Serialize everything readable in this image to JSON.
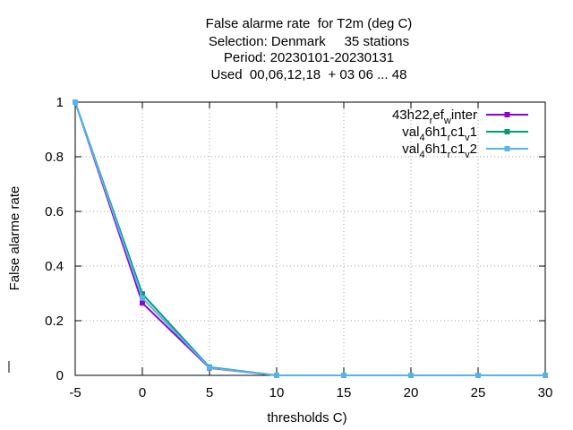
{
  "chart_data": {
    "type": "line",
    "title_lines": [
      "False alarme rate  for T2m (deg C)",
      "Selection: Denmark     35 stations",
      "Period: 20230101-20230131",
      "Used  00,06,12,18  + 03 06 ... 48"
    ],
    "xlabel": "thresholds C)",
    "ylabel": "False alarme rate",
    "xlim": [
      -5,
      30
    ],
    "ylim": [
      0,
      1
    ],
    "xticks": [
      "-5",
      "0",
      "5",
      "10",
      "15",
      "20",
      "25",
      "30"
    ],
    "yticks": [
      "0",
      "0.2",
      "0.4",
      "0.6",
      "0.8",
      "1"
    ],
    "grid": true,
    "legend_position": "top-right",
    "x": [
      -5,
      0,
      5,
      10,
      15,
      20,
      25,
      30
    ],
    "series": [
      {
        "name": "43h22_ref_winter",
        "legend": {
          "base": "43h22",
          "parts": [
            [
              "sub",
              "r"
            ],
            [
              "base",
              "ef"
            ],
            [
              "sub",
              "w"
            ],
            [
              "base",
              "inter"
            ]
          ]
        },
        "color": "#9400d3",
        "values": [
          1.0,
          0.265,
          0.027,
          0.0,
          0.0,
          0.0,
          0.0,
          0.0
        ]
      },
      {
        "name": "val_46h1_rc1_v1",
        "legend": {
          "base": "val",
          "parts": [
            [
              "sub",
              "4"
            ],
            [
              "base",
              "6h1"
            ],
            [
              "sub",
              "r"
            ],
            [
              "base",
              "c1"
            ],
            [
              "sub",
              "v"
            ],
            [
              "base",
              "1"
            ]
          ]
        },
        "color": "#009e73",
        "values": [
          1.0,
          0.298,
          0.03,
          0.0,
          0.0,
          0.0,
          0.0,
          0.0
        ]
      },
      {
        "name": "val_46h1_rc1_v2",
        "legend": {
          "base": "val",
          "parts": [
            [
              "sub",
              "4"
            ],
            [
              "base",
              "6h1"
            ],
            [
              "sub",
              "r"
            ],
            [
              "base",
              "c1"
            ],
            [
              "sub",
              "v"
            ],
            [
              "base",
              "2"
            ]
          ]
        },
        "color": "#56b4e9",
        "values": [
          1.0,
          0.283,
          0.028,
          0.0,
          0.0,
          0.0,
          0.0,
          0.0
        ]
      }
    ]
  }
}
